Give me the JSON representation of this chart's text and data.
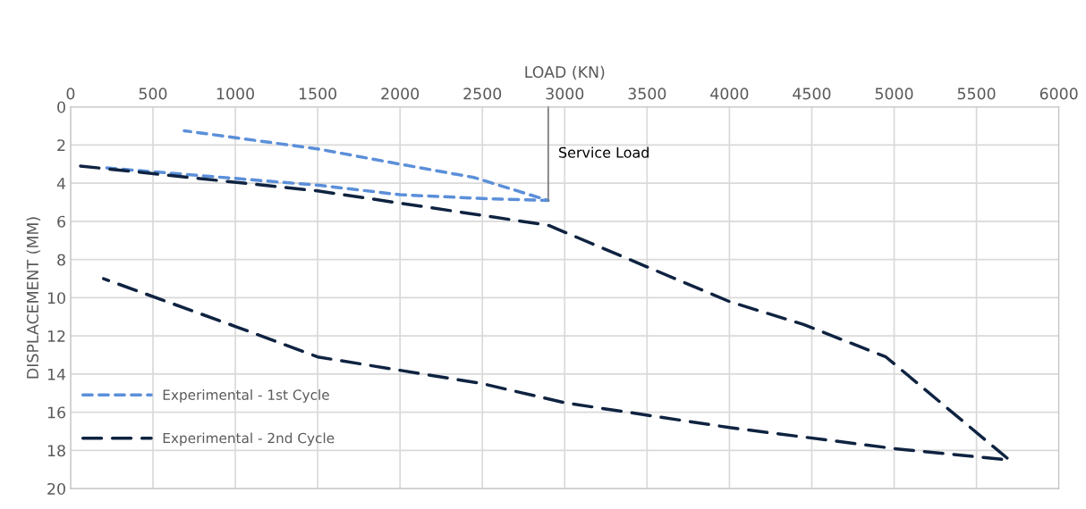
{
  "chart_data": {
    "type": "line",
    "xlabel": "LOAD (KN)",
    "ylabel": "DISPLACEMENT (MM)",
    "xlim": [
      0,
      6000
    ],
    "xticks": [
      0,
      500,
      1000,
      1500,
      2000,
      2500,
      3000,
      3500,
      4000,
      4500,
      5000,
      5500,
      6000
    ],
    "ylim": [
      20,
      0
    ],
    "yticks": [
      0,
      2,
      4,
      6,
      8,
      10,
      12,
      14,
      16,
      18,
      20
    ],
    "grid": true,
    "legend": "bottom left",
    "line_style": "dashed",
    "marker": "none",
    "series": [
      {
        "name": "Experimental - 1st Cycle",
        "color": "#5b8fd9",
        "x": [
          220,
          1500,
          2000,
          2500,
          2900,
          2450,
          2000,
          1500,
          690
        ],
        "values": [
          3.2,
          4.1,
          4.6,
          4.8,
          4.9,
          3.7,
          3.0,
          2.2,
          1.25
        ]
      },
      {
        "name": "Experimental - 2nd Cycle",
        "color": "#0f2341",
        "x": [
          60,
          1500,
          2900,
          4000,
          4450,
          4950,
          5700,
          5000,
          4000,
          3000,
          2500,
          1500,
          1000,
          200
        ],
        "values": [
          3.1,
          4.4,
          6.2,
          10.2,
          11.4,
          13.1,
          18.5,
          17.9,
          16.8,
          15.5,
          14.5,
          13.1,
          11.5,
          9.0
        ]
      },
      {
        "color": "#7f7f7f",
        "line_style": "solid",
        "x": [
          2900,
          2900
        ],
        "values": [
          0,
          4.9
        ]
      }
    ],
    "annotations": [
      {
        "text": "Service Load",
        "x": 2900,
        "y": 2.4
      }
    ]
  }
}
